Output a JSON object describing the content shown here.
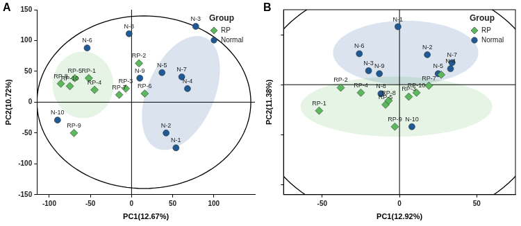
{
  "chart_data": [
    {
      "panel": "A",
      "type": "scatter",
      "x_label": "PC1(12.67%)",
      "y_label": "PC2(10.72%)",
      "legend_title": "Group",
      "legend": "upper right",
      "xlim": [
        -115,
        150
      ],
      "xticks": [
        -100,
        -50,
        0,
        50,
        100
      ],
      "ylim": [
        -150,
        150
      ],
      "yticks": [
        -150,
        -100,
        -50,
        0,
        50,
        100,
        150
      ],
      "grid": false,
      "ellipse": {
        "center": [
          15,
          0
        ],
        "radii": [
          130,
          140
        ],
        "angle": 0
      },
      "series": [
        {
          "name": "RP",
          "color": "#5cb85c",
          "marker": "diamond",
          "labels": [
            "RP-1",
            "RP-2",
            "RP-3",
            "RP-4",
            "RP-5",
            "RP-6",
            "RP-7",
            "RP-8",
            "RP-9",
            "RP-10"
          ],
          "x": [
            -52,
            9,
            -7,
            -45,
            -69,
            16,
            -15,
            -86,
            -70,
            -75
          ],
          "y": [
            39,
            63,
            22,
            20,
            39,
            14,
            12,
            30,
            -50,
            26
          ],
          "ellipse": {
            "center": [
              -59,
              28
            ],
            "radii": [
              37,
              54
            ],
            "angle": 0
          }
        },
        {
          "name": "Normal",
          "color": "#1f5a96",
          "marker": "circle",
          "labels": [
            "N-1",
            "N-2",
            "N-3",
            "N-4",
            "N-5",
            "N-6",
            "N-7",
            "N-8",
            "N-9",
            "N-10"
          ],
          "x": [
            54,
            42,
            78,
            68,
            37,
            -54,
            61,
            -3,
            10,
            -90
          ],
          "y": [
            -74,
            -50,
            123,
            22,
            48,
            88,
            41,
            111,
            39,
            -29
          ],
          "ellipse": {
            "center": [
              60,
              15
            ],
            "radii": [
              42,
              95
            ],
            "angle": -15
          }
        }
      ]
    },
    {
      "panel": "B",
      "type": "scatter",
      "x_label": "PC1(12.92%)",
      "y_label": "PC2(11.38%)",
      "legend_title": "Group",
      "legend": "upper right",
      "xlim": [
        -75,
        75
      ],
      "xticks": [
        -50,
        0,
        50
      ],
      "ylim": [
        -110,
        75
      ],
      "yticks": [
        -100,
        -50,
        0,
        50
      ],
      "tick_labels": "x",
      "grid": false,
      "ellipse": {
        "center": [
          0,
          -18
        ],
        "radii": [
          95,
          120
        ],
        "angle": 0
      },
      "series": [
        {
          "name": "RP",
          "color": "#5cb85c",
          "marker": "diamond",
          "labels": [
            "RP-1",
            "RP-2",
            "RP-3",
            "RP-4",
            "RP-5",
            null,
            "RP-7",
            "RP-8",
            "RP-9",
            "RP-10"
          ],
          "x": [
            -52,
            -38,
            6,
            -25,
            -9,
            27,
            19,
            -7,
            -3,
            11
          ],
          "y": [
            -26,
            -3,
            -12,
            -8,
            -20,
            10,
            -1,
            -16,
            -42,
            -8
          ],
          "ellipse": {
            "center": [
              -2,
              -22
            ],
            "radii": [
              62,
              30
            ],
            "angle": 0
          }
        },
        {
          "name": "Normal",
          "color": "#1f5a96",
          "marker": "circle",
          "labels": [
            "N-1",
            "N-2",
            "N-3",
            "N-4",
            "N-5",
            "N-6",
            "N-7",
            "N-8",
            "N-9",
            "N-10"
          ],
          "x": [
            -1,
            18,
            -20,
            33,
            25,
            -26,
            34,
            -12,
            -13,
            8
          ],
          "y": [
            58,
            30,
            14,
            16,
            11,
            31,
            22,
            -9,
            11,
            -42
          ],
          "ellipse": {
            "center": [
              4,
              32
            ],
            "radii": [
              47,
              32
            ],
            "angle": 0
          }
        }
      ]
    }
  ]
}
